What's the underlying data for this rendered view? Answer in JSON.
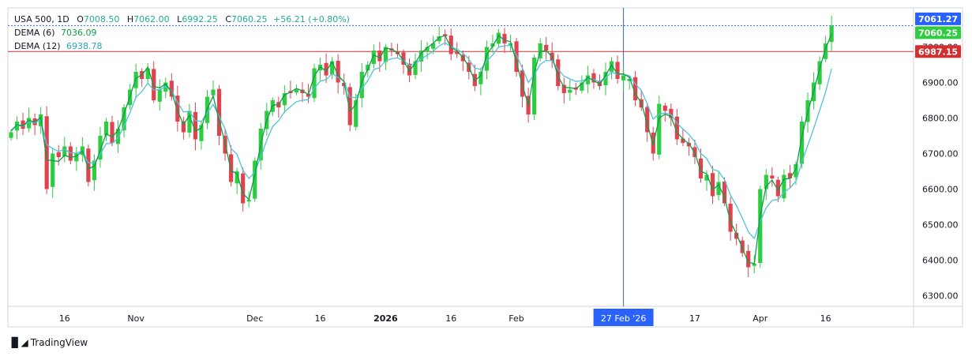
{
  "legend": {
    "symbol": "USA 500, 1D",
    "open_label": "O",
    "open": "7008.50",
    "high_label": "H",
    "high": "7062.00",
    "low_label": "L",
    "low": "6992.25",
    "close_label": "C",
    "close": "7060.25",
    "change": "+56.21 (+0.80%)",
    "dema6_label": "DEMA (6)",
    "dema6_value": "7036.09",
    "dema12_label": "DEMA (12)",
    "dema12_value": "6938.78"
  },
  "brand": {
    "name": "TradingView"
  },
  "colors": {
    "up": "#2ecc40",
    "down": "#e0434f",
    "dema6": "#0d9e4a",
    "dema12": "#4fc3d9",
    "crosshair": "#2962ff",
    "high_line": "#2962ff",
    "price_line": "#d32f2f"
  },
  "chart_data": {
    "type": "candlestick",
    "y_range": [
      6270,
      7110
    ],
    "y_ticks": [
      6300,
      6400,
      6500,
      6600,
      6700,
      6800,
      6900,
      7000
    ],
    "y_tick_labels": [
      "6300.00",
      "6400.00",
      "6500.00",
      "6600.00",
      "6700.00",
      "6800.00",
      "6900.00",
      "7000.00"
    ],
    "x_labels": [
      {
        "label": "16",
        "index": 9
      },
      {
        "label": "Nov",
        "index": 21
      },
      {
        "label": "Dec",
        "index": 41
      },
      {
        "label": "16",
        "index": 52
      },
      {
        "label": "2026",
        "index": 63
      },
      {
        "label": "16",
        "index": 74
      },
      {
        "label": "Feb",
        "index": 85
      },
      {
        "label": "17",
        "index": 115
      },
      {
        "label": "Apr",
        "index": 126
      },
      {
        "label": "16",
        "index": 137
      }
    ],
    "crosshair": {
      "index": 103,
      "label": "27 Feb '26",
      "price_label": "7061.27",
      "price": 7061.27
    },
    "price_tags": [
      {
        "value": 7061.27,
        "label": "7061.27",
        "kind": "high"
      },
      {
        "value": 7060.25,
        "label": "7060.25",
        "kind": "last"
      },
      {
        "value": 6987.15,
        "label": "6987.15",
        "kind": "ref"
      }
    ],
    "closes": [
      6760,
      6790,
      6770,
      6800,
      6780,
      6810,
      6600,
      6700,
      6690,
      6720,
      6680,
      6700,
      6720,
      6620,
      6680,
      6750,
      6790,
      6730,
      6770,
      6830,
      6880,
      6930,
      6910,
      6940,
      6850,
      6880,
      6900,
      6860,
      6790,
      6760,
      6820,
      6740,
      6780,
      6860,
      6880,
      6750,
      6700,
      6620,
      6650,
      6560,
      6570,
      6680,
      6770,
      6820,
      6850,
      6830,
      6870,
      6870,
      6880,
      6870,
      6860,
      6940,
      6950,
      6920,
      6960,
      6900,
      6890,
      6780,
      6850,
      6930,
      6950,
      6990,
      6960,
      7000,
      6990,
      6980,
      6950,
      6920,
      6960,
      6990,
      7000,
      7010,
      7030,
      7030,
      6980,
      6980,
      6960,
      6930,
      6890,
      6930,
      7000,
      7010,
      7040,
      7010,
      7010,
      6930,
      6860,
      6810,
      6970,
      7010,
      6990,
      6960,
      6890,
      6870,
      6880,
      6880,
      6900,
      6920,
      6900,
      6890,
      6930,
      6960,
      6910,
      6920,
      6910,
      6850,
      6830,
      6760,
      6700,
      6840,
      6820,
      6800,
      6740,
      6730,
      6720,
      6690,
      6630,
      6640,
      6580,
      6620,
      6560,
      6480,
      6460,
      6420,
      6380,
      6390,
      6600,
      6640,
      6630,
      6580,
      6640,
      6630,
      6670,
      6790,
      6850,
      6900,
      6960,
      7010,
      7060
    ],
    "dema6": [
      6763,
      6781,
      6778,
      6794,
      6788,
      6802,
      6682,
      6680,
      6678,
      6695,
      6689,
      6693,
      6707,
      6658,
      6664,
      6709,
      6756,
      6746,
      6766,
      6812,
      6861,
      6912,
      6921,
      6943,
      6889,
      6885,
      6896,
      6874,
      6820,
      6782,
      6807,
      6763,
      6772,
      6826,
      6862,
      6792,
      6730,
      6651,
      6644,
      6587,
      6571,
      6640,
      6727,
      6794,
      6836,
      6838,
      6865,
      6873,
      6883,
      6877,
      6866,
      6918,
      6944,
      6932,
      6958,
      6920,
      6902,
      6819,
      6838,
      6903,
      6937,
      6978,
      6969,
      6997,
      6993,
      6985,
      6961,
      6932,
      6955,
      6983,
      6998,
      7010,
      7027,
      7032,
      6998,
      6989,
      6971,
      6944,
      6905,
      6920,
      6978,
      7002,
      7032,
      7019,
      7015,
      6957,
      6892,
      6836,
      6928,
      6987,
      6990,
      6972,
      6917,
      6887,
      6885,
      6883,
      6896,
      6914,
      6906,
      6895,
      6920,
      6949,
      6924,
      6924,
      6915,
      6868,
      6843,
      6784,
      6723,
      6800,
      6811,
      6804,
      6760,
      6741,
      6728,
      6702,
      6650,
      6643,
      6598,
      6612,
      6577,
      6508,
      6474,
      6434,
      6394,
      6390,
      6524,
      6608,
      6625,
      6597,
      6628,
      6630,
      6656,
      6747,
      6817,
      6876,
      6939,
      6996,
      7036
    ],
    "dema12": [
      6766,
      6779,
      6777,
      6789,
      6786,
      6796,
      6725,
      6714,
      6706,
      6712,
      6702,
      6701,
      6708,
      6674,
      6674,
      6698,
      6728,
      6728,
      6744,
      6777,
      6815,
      6858,
      6875,
      6898,
      6879,
      6880,
      6888,
      6877,
      6845,
      6817,
      6819,
      6793,
      6790,
      6815,
      6838,
      6805,
      6769,
      6714,
      6698,
      6653,
      6630,
      6648,
      6690,
      6737,
      6776,
      6793,
      6818,
      6832,
      6846,
      6850,
      6852,
      6883,
      6904,
      6908,
      6925,
      6914,
      6904,
      6859,
      6857,
      6883,
      6905,
      6936,
      6942,
      6961,
      6967,
      6969,
      6962,
      6948,
      6953,
      6966,
      6977,
      6988,
      7003,
      7012,
      7000,
      6994,
      6983,
      6966,
      6940,
      6937,
      6960,
      6977,
      7000,
      7003,
      7005,
      6977,
      6940,
      6900,
      6922,
      6951,
      6962,
      6961,
      6937,
      6918,
      6910,
      6903,
      6905,
      6911,
      6908,
      6903,
      6913,
      6929,
      6923,
      6923,
      6919,
      6896,
      6878,
      6840,
      6797,
      6812,
      6814,
      6810,
      6786,
      6769,
      6754,
      6733,
      6700,
      6686,
      6656,
      6650,
      6626,
      6583,
      6553,
      6518,
      6480,
      6461,
      6508,
      6547,
      6568,
      6571,
      6591,
      6603,
      6622,
      6675,
      6723,
      6771,
      6822,
      6873,
      6939
    ]
  }
}
